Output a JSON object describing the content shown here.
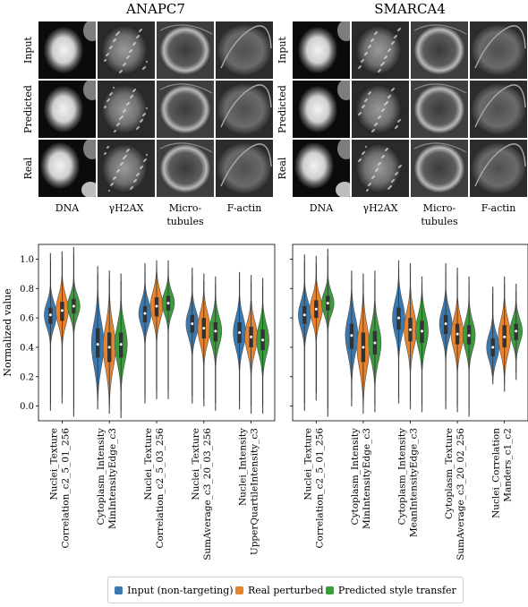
{
  "panel_titles": [
    "ANAPC7",
    "SMARCA4"
  ],
  "row_labels": [
    "Input",
    "Predicted",
    "Real"
  ],
  "channel_labels": [
    [
      "DNA"
    ],
    [
      "γH2AX"
    ],
    [
      "Micro-",
      "tubules"
    ],
    [
      "F-actin"
    ]
  ],
  "colors": {
    "input": "#3a78b0",
    "real": "#e7832d",
    "predicted": "#3c9a3f"
  },
  "legend": {
    "input": "Input (non-targeting)",
    "real": "Real perturbed",
    "predicted": "Predicted style transfer"
  },
  "chart_data": [
    {
      "type": "violin",
      "title": "ANAPC7",
      "ylabel": "Normalized value",
      "ylim": [
        -0.1,
        1.1
      ],
      "yticks": [
        0.0,
        0.2,
        0.4,
        0.6,
        0.8,
        1.0
      ],
      "categories": [
        [
          "Nuclei_Texture",
          "Correlation_c2_5_01_256"
        ],
        [
          "Cytoplasm_Intensity",
          "MinIntensityEdge_c3"
        ],
        [
          "Nuclei_Texture",
          "Correlation_c2_5_03_256"
        ],
        [
          "Nuclei_Texture",
          "SumAverage_c3_20_03_256"
        ],
        [
          "Nuclei_Intensity",
          "UpperQuartileIntensity_c3"
        ]
      ],
      "series": [
        {
          "name": "Input (non-targeting)",
          "key": "input",
          "medians": [
            0.62,
            0.42,
            0.63,
            0.56,
            0.5
          ],
          "q1": [
            0.56,
            0.33,
            0.57,
            0.5,
            0.43
          ],
          "q3": [
            0.67,
            0.53,
            0.68,
            0.62,
            0.57
          ],
          "min": [
            -0.03,
            -0.02,
            0.02,
            0.02,
            -0.02
          ],
          "max": [
            1.04,
            0.95,
            0.97,
            0.94,
            0.91
          ]
        },
        {
          "name": "Real perturbed",
          "key": "real",
          "medians": [
            0.65,
            0.4,
            0.68,
            0.53,
            0.47
          ],
          "q1": [
            0.58,
            0.3,
            0.61,
            0.46,
            0.4
          ],
          "q3": [
            0.71,
            0.5,
            0.74,
            0.6,
            0.54
          ],
          "min": [
            0.02,
            -0.05,
            0.05,
            0.0,
            -0.05
          ],
          "max": [
            1.05,
            0.92,
            0.99,
            0.9,
            0.89
          ]
        },
        {
          "name": "Predicted style transfer",
          "key": "predicted",
          "medians": [
            0.68,
            0.42,
            0.7,
            0.51,
            0.45
          ],
          "q1": [
            0.63,
            0.33,
            0.65,
            0.44,
            0.38
          ],
          "q3": [
            0.73,
            0.5,
            0.75,
            0.57,
            0.52
          ],
          "min": [
            -0.07,
            -0.08,
            0.05,
            -0.03,
            -0.05
          ],
          "max": [
            1.08,
            0.9,
            0.99,
            0.88,
            0.87
          ]
        }
      ]
    },
    {
      "type": "violin",
      "title": "SMARCA4",
      "ylabel": "",
      "ylim": [
        -0.1,
        1.1
      ],
      "yticks": [
        0.0,
        0.2,
        0.4,
        0.6,
        0.8,
        1.0
      ],
      "categories": [
        [
          "Nuclei_Texture",
          "Correlation_c2_5_01_256"
        ],
        [
          "Cytoplasm_Intensity",
          "MinIntensityEdge_c3"
        ],
        [
          "Cytoplasm_Intensity",
          "MeanIntensityEdge_c3"
        ],
        [
          "Cytoplasm_Texture",
          "SumAverage_c3_20_02_256"
        ],
        [
          "Nuclei_Correlation",
          "Manders_c1_c2"
        ]
      ],
      "series": [
        {
          "name": "Input (non-targeting)",
          "key": "input",
          "medians": [
            0.62,
            0.48,
            0.6,
            0.56,
            0.4
          ],
          "q1": [
            0.56,
            0.39,
            0.52,
            0.49,
            0.34
          ],
          "q3": [
            0.68,
            0.56,
            0.67,
            0.62,
            0.46
          ],
          "min": [
            -0.03,
            0.0,
            0.02,
            -0.02,
            0.15
          ],
          "max": [
            1.03,
            0.92,
            0.99,
            0.97,
            0.81
          ]
        },
        {
          "name": "Real perturbed",
          "key": "real",
          "medians": [
            0.66,
            0.4,
            0.52,
            0.49,
            0.47
          ],
          "q1": [
            0.6,
            0.3,
            0.44,
            0.42,
            0.4
          ],
          "q3": [
            0.72,
            0.5,
            0.6,
            0.56,
            0.55
          ],
          "min": [
            0.04,
            -0.05,
            -0.02,
            -0.04,
            0.1
          ],
          "max": [
            1.02,
            0.9,
            0.97,
            0.94,
            0.88
          ]
        },
        {
          "name": "Predicted style transfer",
          "key": "predicted",
          "medians": [
            0.7,
            0.43,
            0.51,
            0.48,
            0.51
          ],
          "q1": [
            0.65,
            0.35,
            0.43,
            0.42,
            0.45
          ],
          "q3": [
            0.75,
            0.51,
            0.58,
            0.55,
            0.56
          ],
          "min": [
            -0.07,
            -0.04,
            -0.04,
            -0.07,
            0.18
          ],
          "max": [
            1.07,
            0.92,
            0.88,
            0.88,
            0.83
          ]
        }
      ]
    }
  ]
}
